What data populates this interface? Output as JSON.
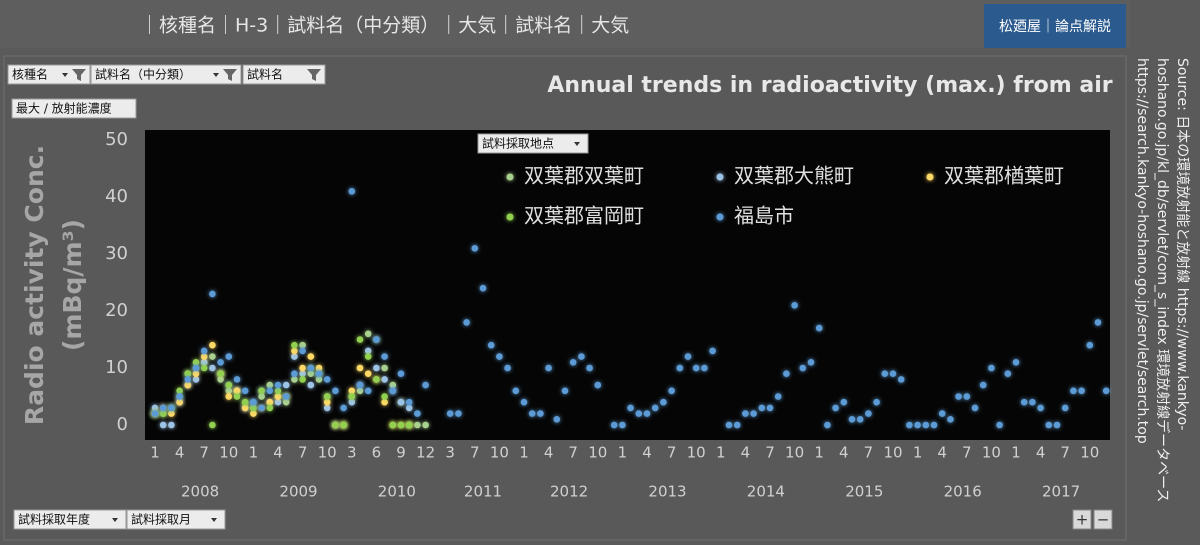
{
  "header": {
    "breadcrumb": "｜核種名｜H-3｜試料名（中分類）｜大気｜試料名｜大気",
    "badge": "松廼屋｜論点解説"
  },
  "controls": {
    "filters": [
      "核種名",
      "試料名（中分類）",
      "試料名"
    ],
    "measure": "最大 / 放射能濃度",
    "legend_field": "試料採取地点",
    "axis_fields": [
      "試料採取年度",
      "試料採取月"
    ],
    "zoom": [
      "+",
      "−"
    ]
  },
  "source": [
    "Source: 日本の環境放射能と放射線 https://www.kankyo-",
    "hoshano.go.jp/kl_db/servlet/com_s_index 環境放射線データベース",
    "https://search.kankyo-hoshano.go.jp/servlet/search.top"
  ],
  "chart_data": {
    "type": "scatter",
    "title": "Annual trends in radioactivity (max.) from air",
    "ylabel": [
      "Radio activity Conc.",
      "(mBq/m³)"
    ],
    "ylim": [
      0,
      50
    ],
    "yticks": [
      0,
      10,
      20,
      30,
      40,
      50
    ],
    "grid": false,
    "legend": "top",
    "categories": [
      "1",
      null,
      null,
      "4",
      null,
      null,
      "7",
      null,
      null,
      "10",
      null,
      null,
      "1",
      null,
      null,
      "4",
      null,
      null,
      "7",
      null,
      null,
      "10",
      null,
      null,
      "3",
      null,
      null,
      "6",
      null,
      null,
      "9",
      null,
      null,
      "12",
      null,
      null,
      "3",
      null,
      null,
      "7",
      null,
      null,
      "10",
      null,
      null,
      "1",
      null,
      null,
      "4",
      null,
      null,
      "7",
      null,
      null,
      "10",
      null,
      null,
      "1",
      null,
      null,
      "4",
      null,
      null,
      "7",
      null,
      null,
      "10",
      null,
      null,
      "1",
      null,
      null,
      "4",
      null,
      null,
      "7",
      null,
      null,
      "10",
      null,
      null,
      "1",
      null,
      null,
      "4",
      null,
      null,
      "7",
      null,
      null,
      "10",
      null,
      null,
      "1",
      null,
      null,
      "4",
      null,
      null,
      "7",
      null,
      null,
      "10",
      null,
      null,
      "1",
      null,
      null,
      "4",
      null,
      null,
      "7",
      null,
      null,
      "10",
      null,
      null
    ],
    "years": [
      {
        "name": "2008",
        "months": 12
      },
      {
        "name": "2009",
        "months": 12
      },
      {
        "name": "2010",
        "months": 12
      },
      {
        "name": "2011",
        "months": 9
      },
      {
        "name": "2012",
        "months": 12
      },
      {
        "name": "2013",
        "months": 12
      },
      {
        "name": "2014",
        "months": 12
      },
      {
        "name": "2015",
        "months": 12
      },
      {
        "name": "2016",
        "months": 12
      },
      {
        "name": "2017",
        "months": 12
      }
    ],
    "series": [
      {
        "name": "双葉郡双葉町",
        "color": "#a9d18e",
        "values": [
          2,
          2,
          3,
          5,
          9,
          10,
          11,
          12,
          8,
          6,
          6,
          4,
          3,
          5,
          7,
          5,
          4,
          8,
          14,
          9,
          8,
          5,
          null,
          0,
          5,
          6,
          16,
          15,
          10,
          7,
          4,
          0,
          0,
          0,
          null,
          null,
          null,
          null,
          null,
          null,
          null,
          null,
          null,
          null,
          null,
          null,
          null,
          null,
          null,
          null,
          null,
          null,
          null,
          null,
          null,
          null,
          null,
          null,
          null,
          null,
          null,
          null,
          null,
          null,
          null,
          null,
          null,
          null,
          null,
          null,
          null,
          null,
          null,
          null,
          null,
          null,
          null,
          null,
          null,
          null,
          null,
          null,
          null,
          null,
          null,
          null,
          null,
          null,
          null,
          null,
          null,
          null,
          null,
          null,
          null,
          null,
          null,
          null,
          null,
          null,
          null,
          null,
          null,
          null,
          null,
          null,
          null,
          null,
          null,
          null,
          null,
          null,
          null,
          null,
          null,
          null,
          null
        ]
      },
      {
        "name": "双葉郡大熊町",
        "color": "#9dc3e6",
        "values": [
          3,
          0,
          0,
          4,
          7,
          8,
          11,
          10,
          9,
          7,
          6,
          3,
          4,
          6,
          4,
          4,
          7,
          12,
          9,
          7,
          9,
          3,
          0,
          null,
          4,
          7,
          13,
          10,
          8,
          6,
          4,
          3,
          null,
          null,
          null,
          null,
          null,
          null,
          null,
          null,
          null,
          null,
          null,
          null,
          null,
          null,
          null,
          null,
          null,
          null,
          null,
          null,
          null,
          null,
          null,
          null,
          null,
          null,
          null,
          null,
          null,
          null,
          null,
          null,
          null,
          null,
          null,
          null,
          null,
          null,
          null,
          null,
          null,
          null,
          null,
          null,
          null,
          null,
          null,
          null,
          null,
          null,
          null,
          null,
          null,
          null,
          null,
          null,
          null,
          null,
          null,
          null,
          null,
          null,
          null,
          null,
          null,
          null,
          null,
          null,
          null,
          null,
          null,
          null,
          null,
          null,
          null,
          null,
          null,
          null,
          null,
          null,
          null,
          null,
          null,
          null,
          null
        ]
      },
      {
        "name": "双葉郡楢葉町",
        "color": "#ffd966",
        "values": [
          2,
          3,
          2,
          4,
          7,
          9,
          12,
          14,
          9,
          5,
          6,
          3,
          2,
          3,
          4,
          5,
          5,
          13,
          10,
          12,
          10,
          4,
          0,
          0,
          6,
          10,
          9,
          8,
          4,
          0,
          0,
          0,
          null,
          null,
          null,
          null,
          null,
          null,
          null,
          null,
          null,
          null,
          null,
          null,
          null,
          null,
          null,
          null,
          null,
          null,
          null,
          null,
          null,
          null,
          null,
          null,
          null,
          null,
          null,
          null,
          null,
          null,
          null,
          null,
          null,
          null,
          null,
          null,
          null,
          null,
          null,
          null,
          null,
          null,
          null,
          null,
          null,
          null,
          null,
          null,
          null,
          null,
          null,
          null,
          null,
          null,
          null,
          null,
          null,
          null,
          null,
          null,
          null,
          null,
          null,
          null,
          null,
          null,
          null,
          null,
          null,
          null,
          null,
          null,
          null,
          null,
          null,
          null,
          null,
          null,
          null,
          null,
          null,
          null,
          null,
          null,
          null
        ]
      },
      {
        "name": "双葉郡富岡町",
        "color": "#92d050",
        "values": [
          2,
          2,
          3,
          6,
          9,
          11,
          10,
          0,
          9,
          7,
          5,
          4,
          3,
          6,
          3,
          6,
          5,
          14,
          8,
          10,
          9,
          5,
          0,
          0,
          5,
          15,
          12,
          8,
          5,
          0,
          0,
          0,
          null,
          null,
          null,
          null,
          null,
          null,
          null,
          null,
          null,
          null,
          null,
          null,
          null,
          null,
          null,
          null,
          null,
          null,
          null,
          null,
          null,
          null,
          null,
          null,
          null,
          null,
          null,
          null,
          null,
          null,
          null,
          null,
          null,
          null,
          null,
          null,
          null,
          null,
          null,
          null,
          null,
          null,
          null,
          null,
          null,
          null,
          null,
          null,
          null,
          null,
          null,
          null,
          null,
          null,
          null,
          null,
          null,
          null,
          null,
          null,
          null,
          null,
          null,
          null,
          null,
          null,
          null,
          null,
          null,
          null,
          null,
          null,
          null,
          null,
          null,
          null,
          null,
          null,
          null,
          null,
          null,
          null,
          null,
          null,
          null
        ]
      },
      {
        "name": "福島市",
        "color": "#5b9bd5",
        "values": [
          2,
          3,
          3,
          5,
          8,
          10,
          13,
          23,
          11,
          12,
          8,
          6,
          4,
          3,
          6,
          7,
          5,
          9,
          13,
          10,
          9,
          8,
          6,
          3,
          41,
          7,
          6,
          15,
          12,
          6,
          9,
          4,
          2,
          7,
          null,
          null,
          2,
          2,
          18,
          31,
          24,
          14,
          12,
          10,
          6,
          4,
          2,
          2,
          10,
          1,
          6,
          11,
          12,
          10,
          7,
          null,
          0,
          0,
          3,
          2,
          2,
          3,
          4,
          6,
          10,
          12,
          10,
          10,
          13,
          null,
          0,
          0,
          2,
          2,
          3,
          3,
          5,
          9,
          21,
          10,
          11,
          17,
          0,
          3,
          4,
          1,
          1,
          2,
          4,
          9,
          9,
          8,
          0,
          0,
          0,
          0,
          2,
          1,
          5,
          5,
          3,
          7,
          10,
          0,
          9,
          11,
          4,
          4,
          3,
          0,
          0,
          3,
          6,
          6,
          14,
          18,
          6
        ]
      }
    ]
  }
}
